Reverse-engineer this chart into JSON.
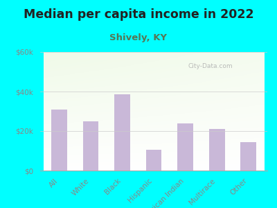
{
  "title": "Median per capita income in 2022",
  "subtitle": "Shively, KY",
  "categories": [
    "All",
    "White",
    "Black",
    "Hispanic",
    "American Indian",
    "Multirace",
    "Other"
  ],
  "values": [
    31000,
    25000,
    38500,
    10500,
    24000,
    21000,
    14500
  ],
  "bar_color": "#c9b8d8",
  "title_fontsize": 12.5,
  "title_color": "#222222",
  "subtitle_fontsize": 9.5,
  "subtitle_color": "#557755",
  "background_color": "#00ffff",
  "ylim": [
    0,
    60000
  ],
  "yticks": [
    0,
    20000,
    40000,
    60000
  ],
  "ytick_labels": [
    "$0",
    "$20k",
    "$40k",
    "$60k"
  ],
  "watermark": "City-Data.com",
  "tick_color": "#888888",
  "tick_fontsize": 7.5
}
